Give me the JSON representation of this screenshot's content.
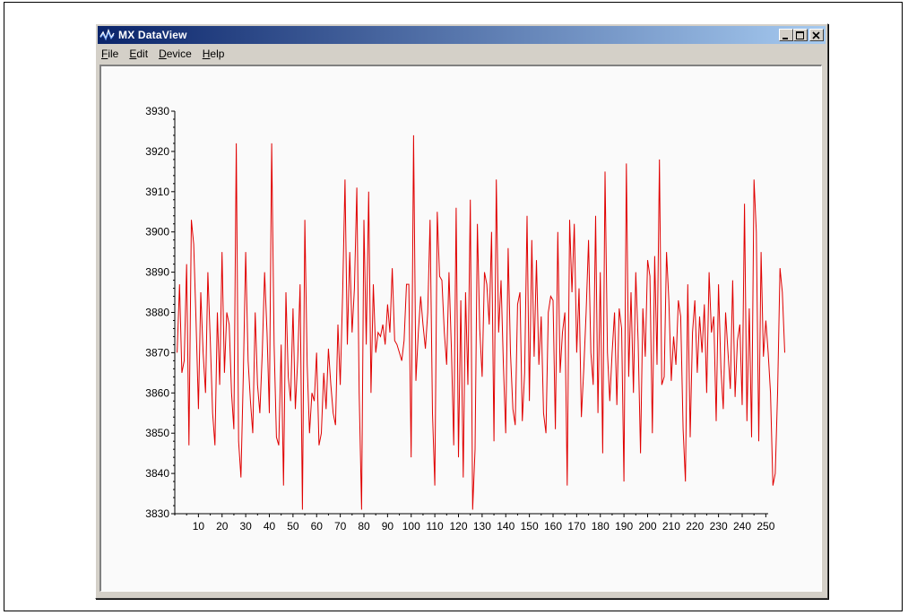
{
  "window": {
    "title": "MX DataView",
    "title_icon": "waveform-app-icon",
    "controls": [
      "minimize",
      "maximize",
      "close"
    ]
  },
  "menu": [
    {
      "label": "File",
      "accel": "F",
      "rest": "ile"
    },
    {
      "label": "Edit",
      "accel": "E",
      "rest": "dit"
    },
    {
      "label": "Device",
      "accel": "D",
      "rest": "evice"
    },
    {
      "label": "Help",
      "accel": "H",
      "rest": "elp"
    }
  ],
  "colors": {
    "line": "#e00000",
    "title_start": "#0a246a",
    "title_end": "#a6caf0"
  },
  "chart_data": {
    "type": "line",
    "x_ticks": [
      10,
      20,
      30,
      40,
      50,
      60,
      70,
      80,
      90,
      100,
      110,
      120,
      130,
      140,
      150,
      160,
      170,
      180,
      190,
      200,
      210,
      220,
      230,
      240,
      250
    ],
    "y_ticks": [
      3830,
      3840,
      3850,
      3860,
      3870,
      3880,
      3890,
      3900,
      3910,
      3920,
      3930
    ],
    "xlim": [
      0,
      251
    ],
    "ylim": [
      3830,
      3930
    ],
    "grid": false,
    "series": [
      {
        "x_start": 1,
        "values": [
          3870,
          3887,
          3865,
          3868,
          3892,
          3847,
          3903,
          3897,
          3878,
          3856,
          3885,
          3870,
          3860,
          3890,
          3873,
          3855,
          3847,
          3880,
          3862,
          3895,
          3865,
          3880,
          3877,
          3860,
          3851,
          3922,
          3848,
          3839,
          3865,
          3895,
          3868,
          3858,
          3850,
          3880,
          3862,
          3855,
          3870,
          3890,
          3875,
          3855,
          3922,
          3872,
          3849,
          3847,
          3872,
          3837,
          3885,
          3864,
          3858,
          3881,
          3856,
          3868,
          3887,
          3831,
          3903,
          3867,
          3850,
          3860,
          3858,
          3870,
          3847,
          3850,
          3865,
          3856,
          3871,
          3862,
          3855,
          3852,
          3877,
          3862,
          3885,
          3913,
          3872,
          3895,
          3875,
          3886,
          3911,
          3860,
          3831,
          3903,
          3872,
          3910,
          3860,
          3887,
          3870,
          3875,
          3874,
          3877,
          3872,
          3882,
          3875,
          3891,
          3873,
          3872,
          3870,
          3868,
          3873,
          3887,
          3887,
          3844,
          3924,
          3863,
          3875,
          3884,
          3877,
          3871,
          3880,
          3903,
          3855,
          3837,
          3905,
          3889,
          3888,
          3875,
          3867,
          3890,
          3871,
          3847,
          3906,
          3844,
          3883,
          3839,
          3885,
          3862,
          3908,
          3831,
          3846,
          3902,
          3876,
          3864,
          3890,
          3887,
          3877,
          3900,
          3848,
          3913,
          3875,
          3888,
          3867,
          3850,
          3896,
          3870,
          3856,
          3852,
          3882,
          3885,
          3853,
          3865,
          3904,
          3858,
          3898,
          3869,
          3893,
          3867,
          3879,
          3855,
          3850,
          3880,
          3884,
          3883,
          3851,
          3900,
          3865,
          3875,
          3880,
          3837,
          3903,
          3885,
          3902,
          3870,
          3886,
          3854,
          3866,
          3880,
          3898,
          3870,
          3862,
          3904,
          3855,
          3890,
          3845,
          3915,
          3870,
          3858,
          3870,
          3880,
          3857,
          3881,
          3876,
          3838,
          3917,
          3864,
          3885,
          3860,
          3890,
          3873,
          3845,
          3881,
          3869,
          3893,
          3889,
          3850,
          3894,
          3867,
          3918,
          3862,
          3864,
          3895,
          3883,
          3863,
          3874,
          3867,
          3883,
          3879,
          3851,
          3838,
          3887,
          3849,
          3875,
          3883,
          3865,
          3879,
          3870,
          3882,
          3860,
          3890,
          3875,
          3879,
          3853,
          3887,
          3866,
          3856,
          3880,
          3870,
          3861,
          3888,
          3859,
          3873,
          3877,
          3857,
          3907,
          3853,
          3881,
          3849,
          3913,
          3900,
          3848,
          3895,
          3869,
          3878,
          3870,
          3860,
          3837,
          3840,
          3860,
          3891,
          3885,
          3870
        ]
      }
    ]
  }
}
